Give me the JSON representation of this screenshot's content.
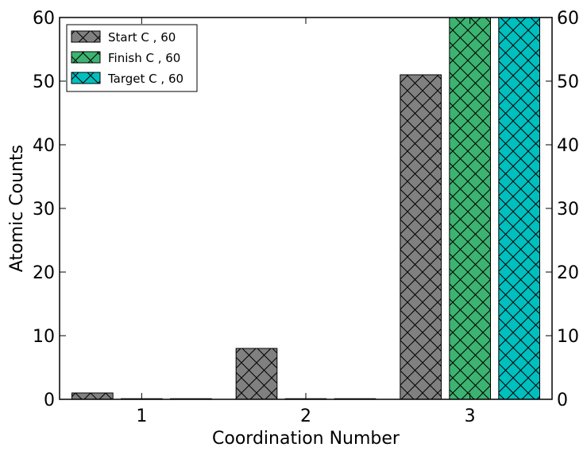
{
  "chart_data": {
    "type": "bar",
    "xlabel": "Coordination Number",
    "ylabel": "Atomic Counts",
    "xlim": [
      0.5,
      3.5
    ],
    "ylim": [
      0,
      60
    ],
    "x_ticks": [
      "1",
      "2",
      "3"
    ],
    "y_ticks": [
      0,
      10,
      20,
      30,
      40,
      50,
      60
    ],
    "right_axis_ticks": [
      0,
      10,
      20,
      30,
      40,
      50,
      60
    ],
    "bar_width": 0.25,
    "hatch": "cross-hatch",
    "grid": false,
    "legend": {
      "placement": "top-left"
    },
    "series": [
      {
        "name": "Start C , 60",
        "color": "#808080",
        "offset": -0.3,
        "points": [
          {
            "x": 1,
            "y": 1
          },
          {
            "x": 2,
            "y": 8
          },
          {
            "x": 3,
            "y": 51
          }
        ]
      },
      {
        "name": "Finish C , 60",
        "color": "#3cb371",
        "offset": 0.0,
        "points": [
          {
            "x": 1,
            "y": 0
          },
          {
            "x": 2,
            "y": 0
          },
          {
            "x": 3,
            "y": 60
          }
        ]
      },
      {
        "name": "Target C , 60",
        "color": "#00bfbf",
        "offset": 0.3,
        "points": [
          {
            "x": 1,
            "y": 0
          },
          {
            "x": 2,
            "y": 0
          },
          {
            "x": 3,
            "y": 60
          }
        ]
      }
    ]
  }
}
